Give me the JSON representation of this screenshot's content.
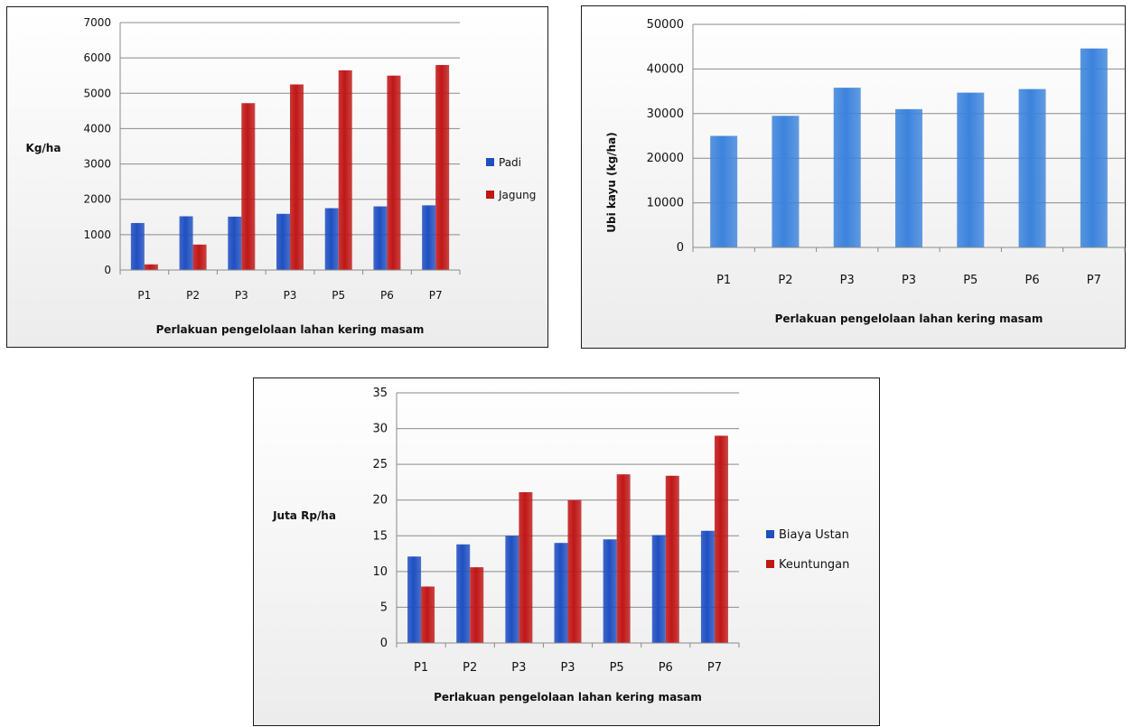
{
  "charts": [
    {
      "id": "chart1",
      "chart_data": {
        "type": "bar",
        "title": "",
        "categories": [
          "P1",
          "P2",
          "P3",
          "P3",
          "P5",
          "P6",
          "P7"
        ],
        "series": [
          {
            "name": "Padi",
            "color": "#1f4fc1",
            "values": [
              1330,
              1520,
              1510,
              1590,
              1750,
              1800,
              1830
            ]
          },
          {
            "name": "Jagung",
            "color": "#c01717",
            "values": [
              160,
              720,
              4720,
              5250,
              5650,
              5500,
              5800
            ]
          }
        ],
        "xlabel": "Perlakuan pengelolaan lahan kering masam",
        "ylabel": "Kg/ha",
        "ylim": [
          0,
          7000
        ],
        "yticks": [
          0,
          1000,
          2000,
          3000,
          4000,
          5000,
          6000,
          7000
        ],
        "grid": true,
        "legend": "right"
      }
    },
    {
      "id": "chart2",
      "chart_data": {
        "type": "bar",
        "title": "",
        "categories": [
          "P1",
          "P2",
          "P3",
          "P3",
          "P5",
          "P6",
          "P7"
        ],
        "series": [
          {
            "color": "#3c83dc",
            "values": [
              25000,
              29500,
              35800,
              31000,
              34700,
              35500,
              44600
            ]
          }
        ],
        "xlabel": "Perlakuan pengelolaan lahan kering masam",
        "ylabel": "Ubi kayu (kg/ha)",
        "ylim": [
          0,
          50000
        ],
        "yticks": [
          0,
          10000,
          20000,
          30000,
          40000,
          50000
        ],
        "grid": true,
        "legend": "none"
      }
    },
    {
      "id": "chart3",
      "chart_data": {
        "type": "bar",
        "title": "",
        "categories": [
          "P1",
          "P2",
          "P3",
          "P3",
          "P5",
          "P6",
          "P7"
        ],
        "series": [
          {
            "name": "Biaya Ustan",
            "color": "#1f4fc1",
            "values": [
              12.1,
              13.8,
              15.0,
              14.0,
              14.5,
              15.1,
              15.7
            ]
          },
          {
            "name": "Keuntungan",
            "color": "#c01717",
            "values": [
              7.9,
              10.6,
              21.1,
              20.0,
              23.6,
              23.4,
              29.0
            ]
          }
        ],
        "xlabel": "Perlakuan pengelolaan lahan kering masam",
        "ylabel": "Juta Rp/ha",
        "ylim": [
          0,
          35
        ],
        "yticks": [
          0,
          5,
          10,
          15,
          20,
          25,
          30,
          35
        ],
        "grid": true,
        "legend": "right"
      }
    }
  ]
}
